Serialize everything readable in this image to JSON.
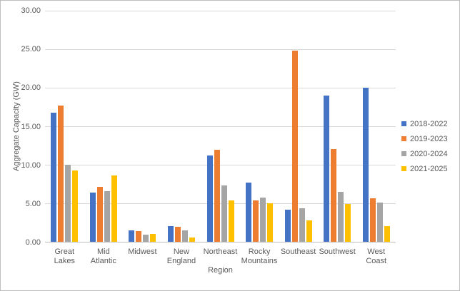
{
  "chart_data": {
    "type": "bar",
    "title": "",
    "xlabel": "Region",
    "ylabel": "Aggregate Capacity (GW)",
    "ylim": [
      0,
      30
    ],
    "ytick_step": 5,
    "yticks": [
      "0.00",
      "5.00",
      "10.00",
      "15.00",
      "20.00",
      "25.00",
      "30.00"
    ],
    "grid": "horizontal",
    "legend_position": "right",
    "categories": [
      "Great Lakes",
      "Mid Atlantic",
      "Midwest",
      "New England",
      "Northeast",
      "Rocky Mountains",
      "Southeast",
      "Southwest",
      "West Coast"
    ],
    "category_label_lines": [
      [
        "Great Lakes"
      ],
      [
        "Mid",
        "Atlantic"
      ],
      [
        "Midwest"
      ],
      [
        "New",
        "England"
      ],
      [
        "Northeast"
      ],
      [
        "Rocky",
        "Mountains"
      ],
      [
        "Southeast"
      ],
      [
        "Southwest"
      ],
      [
        "West Coast"
      ]
    ],
    "series": [
      {
        "name": "2018-2022",
        "color": "#4472C4",
        "values": [
          16.7,
          6.4,
          1.5,
          2.0,
          11.2,
          7.7,
          4.2,
          18.9,
          19.9
        ]
      },
      {
        "name": "2019-2023",
        "color": "#ED7D31",
        "values": [
          17.6,
          7.1,
          1.4,
          1.9,
          11.9,
          5.4,
          24.7,
          12.0,
          5.6
        ]
      },
      {
        "name": "2020-2024",
        "color": "#A5A5A5",
        "values": [
          10.0,
          6.6,
          0.9,
          1.5,
          7.3,
          5.7,
          4.3,
          6.5,
          5.1
        ]
      },
      {
        "name": "2021-2025",
        "color": "#FFC000",
        "values": [
          9.2,
          8.6,
          1.0,
          0.6,
          5.4,
          5.0,
          2.8,
          4.9,
          2.0
        ]
      }
    ],
    "colors": {
      "gridline": "#d9d9d9",
      "axis_line": "#bfbfbf",
      "text": "#595959"
    }
  }
}
